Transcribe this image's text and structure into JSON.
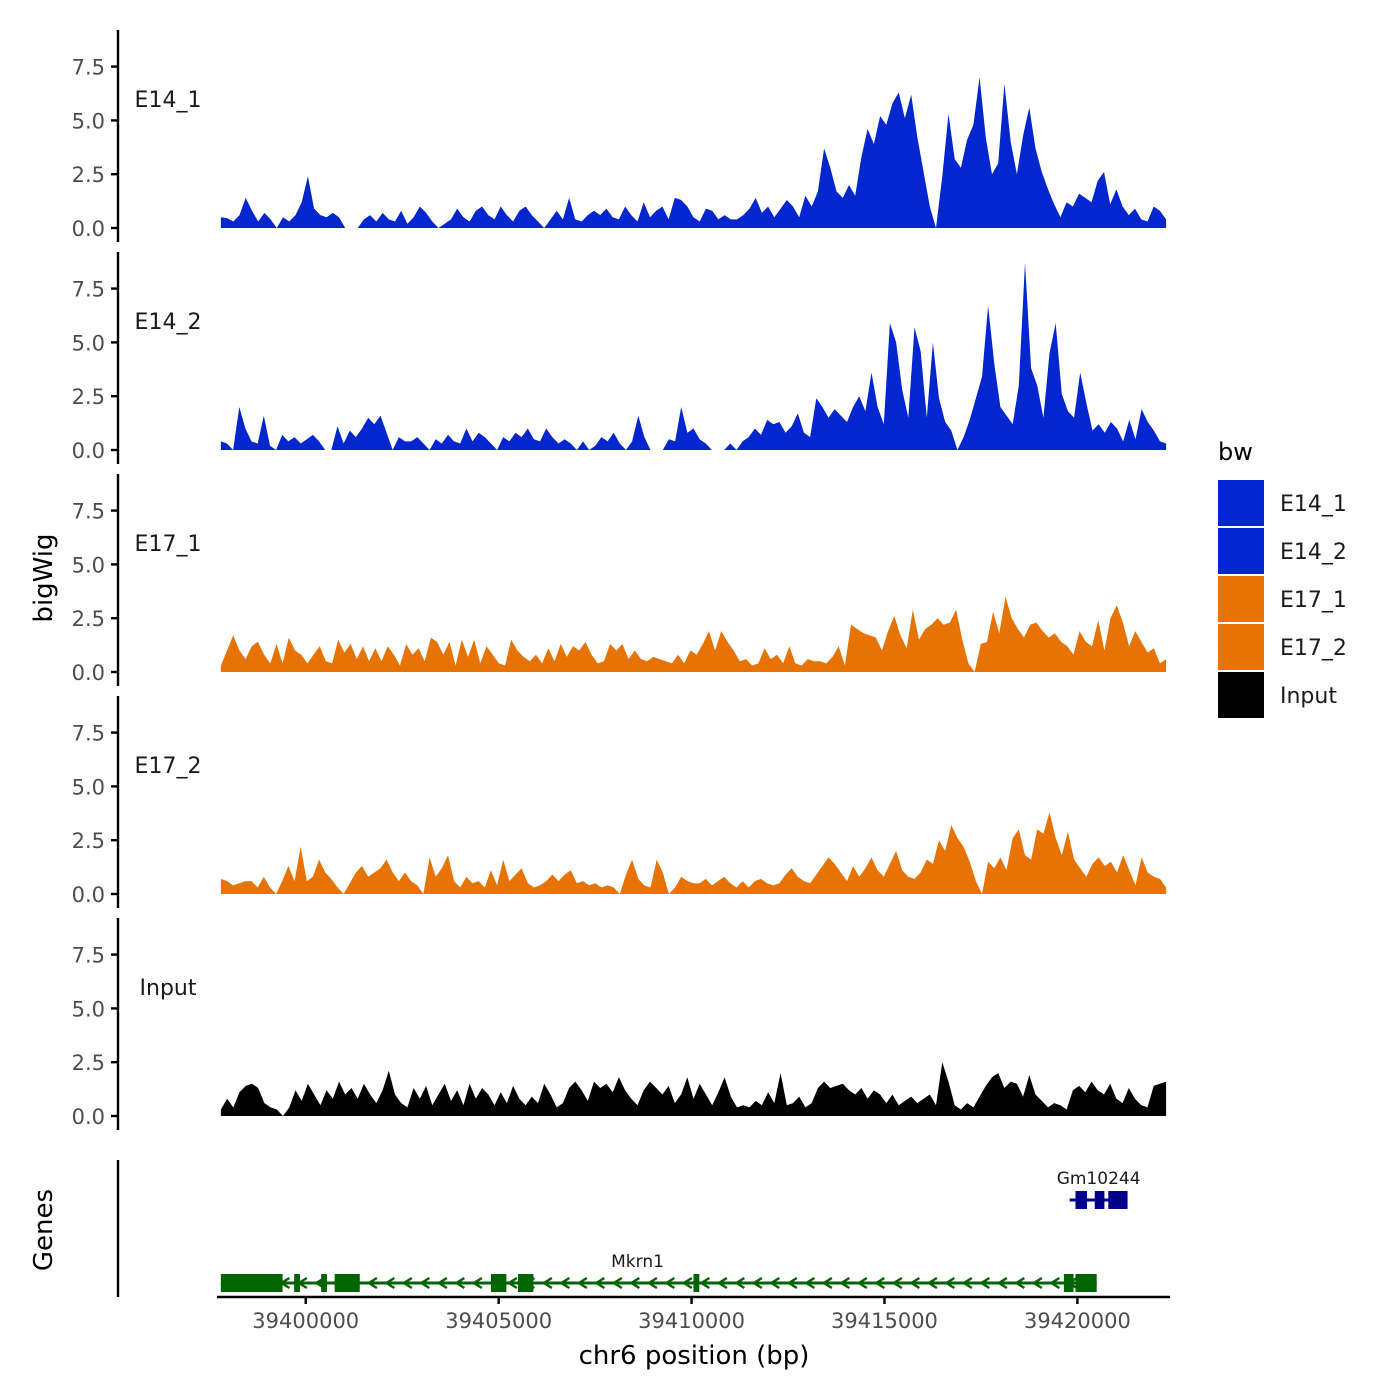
{
  "chart_data": {
    "type": "area",
    "xlabel": "chr6 position (bp)",
    "ylabel_tracks": "bigWig",
    "ylabel_genes": "Genes",
    "xlim": [
      39397700,
      39422400
    ],
    "x_ticks": [
      39400000,
      39405000,
      39410000,
      39415000,
      39420000
    ],
    "x_tick_labels": [
      "39400000",
      "39405000",
      "39410000",
      "39415000",
      "39420000"
    ],
    "ylim": [
      0,
      9.2
    ],
    "y_ticks": [
      0,
      2.5,
      5,
      7.5
    ],
    "y_tick_labels": [
      "0.0",
      "2.5",
      "5.0",
      "7.5"
    ],
    "track_start": 39397800,
    "track_end": 39422300,
    "legend": {
      "title": "bw",
      "position": "right",
      "entries": [
        {
          "label": "E14_1",
          "color": "#0326CF"
        },
        {
          "label": "E14_2",
          "color": "#0326CF"
        },
        {
          "label": "E17_1",
          "color": "#E87305"
        },
        {
          "label": "E17_2",
          "color": "#E87305"
        },
        {
          "label": "Input",
          "color": "#000000"
        }
      ]
    },
    "series": [
      {
        "name": "E14_1",
        "color": "#0326CF",
        "values": [
          0.5,
          0.45,
          0.3,
          0.6,
          1.4,
          0.8,
          0.3,
          0.7,
          0.4,
          0,
          0.5,
          0.3,
          0.6,
          1.2,
          2.4,
          0.9,
          0.6,
          0.5,
          0.7,
          0.5,
          0,
          0,
          0,
          0.4,
          0.6,
          0.3,
          0.7,
          0.4,
          0.3,
          0.8,
          0.2,
          0.5,
          1.0,
          0.7,
          0.3,
          0,
          0.2,
          0.4,
          0.9,
          0.5,
          0.3,
          0.8,
          1.0,
          0.6,
          0.4,
          1.0,
          0.6,
          0.3,
          0.8,
          1.0,
          0.6,
          0.3,
          0,
          0.4,
          0.8,
          0.4,
          1.4,
          0.4,
          0.3,
          0.6,
          0.8,
          0.6,
          0.9,
          0.5,
          0.4,
          1.0,
          0.6,
          0.3,
          1.2,
          0.5,
          0.8,
          1.0,
          0.4,
          1.4,
          1.3,
          1.0,
          0.5,
          0.3,
          0.9,
          0.8,
          0.4,
          0.6,
          0.4,
          0.4,
          0.6,
          0.9,
          1.4,
          0.7,
          1.0,
          0.5,
          0.9,
          1.3,
          1.0,
          0.5,
          1.5,
          1.0,
          1.7,
          3.7,
          2.8,
          1.7,
          1.4,
          2.0,
          1.5,
          3.3,
          4.6,
          3.9,
          5.2,
          4.8,
          5.8,
          6.3,
          5.1,
          6.2,
          4.2,
          2.6,
          1.0,
          0,
          2.4,
          5.3,
          3.2,
          2.8,
          4.1,
          4.8,
          7.0,
          4.2,
          2.5,
          3.0,
          6.7,
          4.0,
          2.5,
          4.3,
          5.6,
          3.7,
          2.6,
          1.8,
          1.1,
          0.5,
          1.2,
          1.0,
          1.6,
          1.4,
          1.2,
          2.2,
          2.6,
          1.1,
          1.8,
          1.0,
          0.6,
          0.9,
          0.4,
          0.3,
          1.0,
          0.8,
          0.4
        ]
      },
      {
        "name": "E14_2",
        "color": "#0326CF",
        "values": [
          0.4,
          0.3,
          0,
          2.0,
          1.0,
          0.4,
          0.3,
          1.6,
          0.2,
          0,
          0.7,
          0.4,
          0.6,
          0.3,
          0.5,
          0.7,
          0.4,
          0,
          0,
          1.1,
          0.3,
          0.9,
          0.6,
          1.0,
          1.5,
          1.2,
          1.6,
          0.8,
          0,
          0.6,
          0.4,
          0.4,
          0.6,
          0.3,
          0,
          0.5,
          0.3,
          0.7,
          0.4,
          0.3,
          1.0,
          0.4,
          0.8,
          0.6,
          0.3,
          0,
          0.6,
          0.4,
          0.8,
          0.6,
          1.0,
          0.5,
          0.4,
          1.0,
          0.6,
          0.3,
          0.5,
          0.3,
          0,
          0.4,
          0,
          0.2,
          0.6,
          0.4,
          0.8,
          0.3,
          0,
          0.4,
          1.6,
          0.6,
          0,
          0,
          0,
          0.5,
          0.4,
          2.0,
          0.8,
          1.0,
          0.5,
          0.3,
          0,
          0,
          0,
          0.3,
          0,
          0.4,
          0.6,
          1.0,
          0.7,
          1.4,
          1.2,
          1.3,
          0.8,
          1.1,
          1.7,
          0.8,
          0.6,
          2.4,
          2.0,
          1.5,
          1.9,
          1.6,
          1.3,
          2.0,
          2.5,
          1.8,
          3.6,
          2.0,
          1.2,
          5.9,
          5.0,
          2.8,
          1.5,
          5.7,
          4.6,
          1.5,
          5.0,
          2.4,
          1.3,
          0.9,
          0,
          0.6,
          1.4,
          2.4,
          3.4,
          6.7,
          4.0,
          2.0,
          1.6,
          1.2,
          3.0,
          8.7,
          3.8,
          3.0,
          1.5,
          4.5,
          5.9,
          2.6,
          1.8,
          1.5,
          3.6,
          2.2,
          0.9,
          1.2,
          0.8,
          1.3,
          1.0,
          0.4,
          1.4,
          0.5,
          1.9,
          1.3,
          0.9,
          0.4,
          0.3
        ]
      },
      {
        "name": "E17_1",
        "color": "#E87305",
        "values": [
          0.3,
          1.0,
          1.7,
          1.0,
          0.6,
          1.2,
          1.4,
          0.8,
          0.4,
          1.3,
          0.4,
          1.6,
          1.0,
          0.8,
          0.4,
          0.8,
          1.2,
          0.5,
          0.4,
          1.5,
          0.9,
          1.3,
          0.6,
          1.2,
          0.5,
          1.1,
          0.5,
          1.2,
          0.8,
          0.3,
          1.3,
          0.8,
          1.1,
          0.5,
          1.6,
          1.4,
          0.8,
          1.4,
          0.3,
          1.5,
          0.7,
          1.5,
          0.4,
          1.2,
          0.8,
          0.4,
          0.3,
          1.5,
          1.0,
          0.7,
          0.5,
          0.8,
          0.4,
          1.1,
          0.5,
          1.3,
          0.7,
          1.2,
          1.0,
          1.4,
          0.8,
          0.4,
          0.5,
          1.3,
          1.0,
          1.3,
          0.6,
          1.0,
          0.6,
          0.5,
          0.7,
          0.6,
          0.5,
          0.4,
          0.8,
          0.4,
          1.0,
          0.8,
          1.3,
          1.9,
          1.0,
          1.9,
          1.4,
          1.0,
          0.5,
          0.6,
          0.3,
          0.4,
          1.1,
          0.6,
          0.8,
          0.4,
          1.2,
          0.4,
          0.3,
          0.6,
          0.5,
          0.5,
          0.4,
          0.7,
          1.2,
          0.3,
          2.2,
          2.0,
          1.8,
          1.7,
          1.6,
          1.0,
          1.9,
          2.6,
          1.7,
          1.1,
          2.9,
          1.5,
          2.0,
          2.2,
          2.5,
          2.2,
          2.3,
          2.9,
          1.5,
          0.4,
          0,
          1.3,
          1.4,
          2.8,
          1.8,
          3.5,
          2.5,
          2.0,
          1.6,
          2.2,
          2.3,
          1.9,
          1.6,
          1.8,
          1.4,
          1.2,
          0.8,
          1.9,
          1.4,
          1.2,
          2.4,
          1.0,
          2.5,
          3.1,
          2.3,
          1.2,
          1.9,
          1.4,
          0.9,
          1.1,
          0.4,
          0.6
        ]
      },
      {
        "name": "E17_2",
        "color": "#E87305",
        "values": [
          0.7,
          0.6,
          0.4,
          0.5,
          0.6,
          0.6,
          0.3,
          0.8,
          0.3,
          0,
          0.6,
          1.3,
          0.6,
          2.2,
          0.6,
          0.8,
          1.6,
          1.0,
          0.7,
          0.3,
          0,
          0.5,
          1.0,
          1.3,
          0.8,
          1.0,
          1.2,
          1.6,
          1.0,
          0.6,
          1.0,
          0.6,
          0.4,
          0,
          1.7,
          0.8,
          1.2,
          1.8,
          0.6,
          0.3,
          0.8,
          0.5,
          0.6,
          0.3,
          1.1,
          0.4,
          1.6,
          0.6,
          0.9,
          1.2,
          0.5,
          0.3,
          0.4,
          0.6,
          0.9,
          0.6,
          0.9,
          1.1,
          0.5,
          0.6,
          0.4,
          0.5,
          0.3,
          0.4,
          0.3,
          0,
          0.9,
          1.6,
          0.7,
          0.4,
          0.3,
          1.6,
          1.0,
          0,
          0.3,
          0.8,
          0.6,
          0.5,
          0.5,
          0.7,
          0.4,
          0.6,
          0.8,
          0.5,
          0.3,
          0.6,
          0.3,
          0.6,
          0.7,
          0.5,
          0.4,
          0.5,
          0.9,
          1.2,
          0.8,
          0.6,
          0.5,
          0.9,
          1.3,
          1.7,
          1.4,
          1.0,
          0.6,
          1.3,
          0.8,
          1.2,
          1.7,
          1.1,
          0.8,
          1.4,
          2.0,
          1.1,
          0.8,
          0.7,
          1.0,
          1.6,
          1.4,
          2.5,
          2.0,
          3.2,
          2.6,
          2.2,
          1.5,
          0.6,
          0,
          1.5,
          1.2,
          1.7,
          1.1,
          2.6,
          3.0,
          1.8,
          1.6,
          3.0,
          2.8,
          3.8,
          2.6,
          1.8,
          2.9,
          1.6,
          1.2,
          0.8,
          1.4,
          1.7,
          1.3,
          1.5,
          1.0,
          1.8,
          1.1,
          0.4,
          1.7,
          1.0,
          0.8,
          0.7,
          0.3
        ]
      },
      {
        "name": "Input",
        "color": "#000000",
        "values": [
          0.3,
          0.8,
          0.4,
          1.1,
          1.4,
          1.5,
          1.3,
          0.6,
          0.4,
          0.3,
          0,
          0.4,
          1.2,
          0.7,
          1.5,
          1.0,
          0.5,
          1.2,
          0.8,
          1.6,
          1.0,
          1.3,
          0.8,
          1.5,
          1.0,
          0.6,
          1.2,
          2.1,
          1.0,
          0.6,
          0.4,
          1.3,
          0.8,
          1.4,
          0.5,
          1.0,
          1.5,
          0.7,
          1.2,
          0.5,
          1.5,
          0.8,
          1.3,
          1.0,
          0.5,
          1.1,
          0.6,
          1.4,
          0.8,
          0.5,
          0.9,
          0.6,
          1.5,
          1.0,
          0.4,
          0.6,
          1.3,
          1.6,
          1.2,
          0.7,
          1.6,
          1.3,
          1.5,
          1.1,
          1.8,
          1.2,
          0.8,
          0.5,
          1.2,
          1.6,
          1.3,
          1.0,
          1.4,
          0.6,
          1.0,
          1.8,
          0.8,
          1.5,
          1.0,
          0.5,
          1.1,
          1.8,
          0.9,
          0.4,
          0.5,
          0.4,
          0.7,
          0.5,
          1.1,
          0.6,
          2.0,
          0.5,
          0.6,
          0.9,
          0.4,
          0.6,
          1.3,
          1.6,
          1.3,
          1.4,
          1.5,
          1.2,
          1.0,
          1.3,
          0.8,
          1.2,
          1.0,
          0.6,
          1.0,
          0.5,
          0.7,
          0.9,
          0.6,
          0.8,
          1.0,
          0.5,
          2.5,
          1.6,
          0.5,
          0.3,
          0.6,
          0.4,
          0.9,
          1.4,
          1.8,
          2.0,
          1.3,
          1.6,
          1.5,
          0.9,
          1.9,
          1.0,
          0.7,
          0.4,
          0.6,
          0.5,
          0.3,
          1.2,
          1.4,
          1.1,
          1.6,
          1.2,
          1.0,
          1.5,
          0.8,
          0.6,
          1.3,
          0.8,
          0.5,
          0.4,
          1.4,
          1.5,
          1.6
        ]
      }
    ],
    "genes": [
      {
        "name": "Mkrn1",
        "color": "#006400",
        "strand": "-",
        "start": 39397800,
        "end": 39420500,
        "exons": [
          [
            39397800,
            39399400
          ],
          [
            39399700,
            39399850
          ],
          [
            39400400,
            39400550
          ],
          [
            39400750,
            39401400
          ],
          [
            39404800,
            39405200
          ],
          [
            39405500,
            39405900
          ],
          [
            39410050,
            39410200
          ],
          [
            39419650,
            39419900
          ],
          [
            39419950,
            39420500
          ]
        ]
      },
      {
        "name": "Gm10244",
        "color": "#00008B",
        "strand": "-",
        "start": 39419800,
        "end": 39421300,
        "exons": [
          [
            39419950,
            39420250
          ],
          [
            39420450,
            39420700
          ],
          [
            39420800,
            39421300
          ]
        ]
      }
    ]
  }
}
